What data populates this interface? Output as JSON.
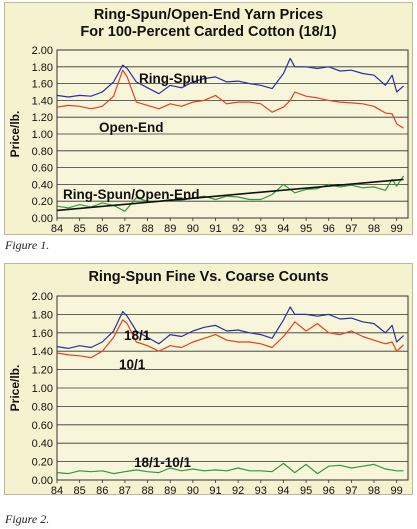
{
  "figures": [
    {
      "caption": "Figure 1.",
      "chart_data": {
        "type": "line",
        "title_lines": [
          "Ring-Spun/Open-End Yarn Prices",
          "For 100-Percent Carded Cotton (18/1)"
        ],
        "ylabel": "Price/lb.",
        "ylim": [
          0,
          2.0
        ],
        "yticks": [
          "0.00",
          "0.20",
          "0.40",
          "0.60",
          "0.80",
          "1.00",
          "1.20",
          "1.40",
          "1.60",
          "1.80",
          "2.00"
        ],
        "xlim": [
          84,
          99.5
        ],
        "xticks": [
          "84",
          "85",
          "86",
          "87",
          "88",
          "89",
          "90",
          "91",
          "92",
          "93",
          "94",
          "95",
          "96",
          "97",
          "98",
          "99"
        ],
        "grid": true,
        "series": [
          {
            "name": "Ring-Spun",
            "color": "#2b2f9e",
            "x": [
              84,
              84.5,
              85,
              85.5,
              86,
              86.5,
              86.9,
              87.1,
              87.5,
              88,
              88.5,
              89,
              89.5,
              90,
              90.5,
              91,
              91.5,
              92,
              92.5,
              93,
              93.5,
              94,
              94.3,
              94.5,
              95,
              95.5,
              96,
              96.5,
              97,
              97.5,
              98,
              98.5,
              98.8,
              99,
              99.3
            ],
            "y": [
              1.46,
              1.44,
              1.46,
              1.45,
              1.5,
              1.62,
              1.82,
              1.78,
              1.62,
              1.55,
              1.48,
              1.58,
              1.55,
              1.62,
              1.66,
              1.68,
              1.62,
              1.63,
              1.6,
              1.58,
              1.54,
              1.72,
              1.9,
              1.8,
              1.8,
              1.78,
              1.8,
              1.75,
              1.76,
              1.72,
              1.7,
              1.58,
              1.7,
              1.5,
              1.57
            ]
          },
          {
            "name": "Open-End",
            "color": "#e8401c",
            "x": [
              84,
              84.5,
              85,
              85.5,
              86,
              86.5,
              86.9,
              87.1,
              87.5,
              88,
              88.5,
              89,
              89.5,
              90,
              90.5,
              91,
              91.5,
              92,
              92.5,
              93,
              93.5,
              94,
              94.3,
              94.5,
              95,
              95.5,
              96,
              96.5,
              97,
              97.5,
              98,
              98.5,
              98.8,
              99,
              99.3
            ],
            "y": [
              1.32,
              1.34,
              1.33,
              1.3,
              1.33,
              1.45,
              1.76,
              1.68,
              1.38,
              1.34,
              1.3,
              1.36,
              1.33,
              1.38,
              1.4,
              1.46,
              1.36,
              1.38,
              1.38,
              1.36,
              1.26,
              1.32,
              1.4,
              1.5,
              1.45,
              1.43,
              1.4,
              1.38,
              1.37,
              1.36,
              1.33,
              1.25,
              1.24,
              1.12,
              1.07
            ]
          },
          {
            "name": "Ring-Spun/Open-End",
            "color": "#2e9b3a",
            "x": [
              84,
              84.5,
              85,
              85.5,
              86,
              86.5,
              87,
              87.5,
              88,
              88.5,
              89,
              89.5,
              90,
              90.5,
              91,
              91.5,
              92,
              92.5,
              93,
              93.5,
              94,
              94.5,
              95,
              95.5,
              96,
              96.5,
              97,
              97.5,
              98,
              98.5,
              98.8,
              99,
              99.3
            ],
            "y": [
              0.14,
              0.12,
              0.16,
              0.13,
              0.18,
              0.15,
              0.08,
              0.24,
              0.2,
              0.2,
              0.22,
              0.21,
              0.24,
              0.26,
              0.22,
              0.26,
              0.25,
              0.22,
              0.22,
              0.28,
              0.4,
              0.3,
              0.34,
              0.35,
              0.4,
              0.37,
              0.39,
              0.36,
              0.37,
              0.33,
              0.46,
              0.38,
              0.5
            ]
          },
          {
            "name": "trend",
            "color": "#111111",
            "x": [
              84,
              99.3
            ],
            "y": [
              0.09,
              0.46
            ]
          }
        ],
        "annotations": [
          "Ring-Spun",
          "Open-End",
          "Ring-Spun/Open-End"
        ]
      }
    },
    {
      "caption": "Figure 2.",
      "chart_data": {
        "type": "line",
        "title": "Ring-Spun Fine Vs. Coarse Counts",
        "ylabel": "Price/lb.",
        "ylim": [
          0,
          2.0
        ],
        "yticks": [
          "0.00",
          "0.20",
          "0.40",
          "0.60",
          "0.80",
          "1.00",
          "1.20",
          "1.40",
          "1.60",
          "1.80",
          "2.00"
        ],
        "xlim": [
          84,
          99.5
        ],
        "xticks": [
          "84",
          "85",
          "86",
          "87",
          "88",
          "89",
          "90",
          "91",
          "92",
          "93",
          "94",
          "95",
          "96",
          "97",
          "98",
          "99"
        ],
        "grid": true,
        "series": [
          {
            "name": "18/1",
            "color": "#2b2f9e",
            "x": [
              84,
              84.5,
              85,
              85.5,
              86,
              86.5,
              86.9,
              87.1,
              87.5,
              88,
              88.5,
              89,
              89.5,
              90,
              90.5,
              91,
              91.5,
              92,
              92.5,
              93,
              93.5,
              94,
              94.3,
              94.5,
              95,
              95.5,
              96,
              96.5,
              97,
              97.5,
              98,
              98.5,
              98.8,
              99,
              99.3
            ],
            "y": [
              1.45,
              1.43,
              1.46,
              1.44,
              1.5,
              1.62,
              1.83,
              1.78,
              1.62,
              1.55,
              1.48,
              1.58,
              1.56,
              1.62,
              1.66,
              1.68,
              1.62,
              1.63,
              1.6,
              1.58,
              1.54,
              1.74,
              1.88,
              1.8,
              1.8,
              1.78,
              1.8,
              1.75,
              1.76,
              1.72,
              1.7,
              1.6,
              1.68,
              1.5,
              1.57
            ]
          },
          {
            "name": "10/1",
            "color": "#e8401c",
            "x": [
              84,
              84.5,
              85,
              85.5,
              86,
              86.5,
              86.9,
              87.1,
              87.5,
              88,
              88.5,
              89,
              89.5,
              90,
              90.5,
              91,
              91.5,
              92,
              92.5,
              93,
              93.5,
              94,
              94.3,
              94.5,
              95,
              95.5,
              96,
              96.5,
              97,
              97.5,
              98,
              98.5,
              98.8,
              99,
              99.3
            ],
            "y": [
              1.38,
              1.36,
              1.35,
              1.33,
              1.4,
              1.55,
              1.74,
              1.7,
              1.5,
              1.46,
              1.4,
              1.46,
              1.44,
              1.5,
              1.54,
              1.58,
              1.52,
              1.5,
              1.5,
              1.48,
              1.44,
              1.56,
              1.65,
              1.72,
              1.62,
              1.7,
              1.6,
              1.58,
              1.62,
              1.56,
              1.52,
              1.48,
              1.5,
              1.4,
              1.47
            ]
          },
          {
            "name": "18/1-10/1",
            "color": "#2e9b3a",
            "x": [
              84,
              84.5,
              85,
              85.5,
              86,
              86.5,
              87,
              87.5,
              88,
              88.5,
              89,
              89.5,
              90,
              90.5,
              91,
              91.5,
              92,
              92.5,
              93,
              93.5,
              94,
              94.5,
              95,
              95.5,
              96,
              96.5,
              97,
              97.5,
              98,
              98.5,
              99,
              99.3
            ],
            "y": [
              0.08,
              0.07,
              0.1,
              0.09,
              0.1,
              0.07,
              0.09,
              0.11,
              0.09,
              0.08,
              0.13,
              0.1,
              0.12,
              0.1,
              0.11,
              0.1,
              0.13,
              0.1,
              0.1,
              0.09,
              0.18,
              0.08,
              0.17,
              0.07,
              0.15,
              0.16,
              0.13,
              0.15,
              0.17,
              0.12,
              0.1,
              0.1
            ]
          }
        ],
        "annotations": [
          "18/1",
          "10/1",
          "18/1-10/1"
        ]
      }
    }
  ]
}
